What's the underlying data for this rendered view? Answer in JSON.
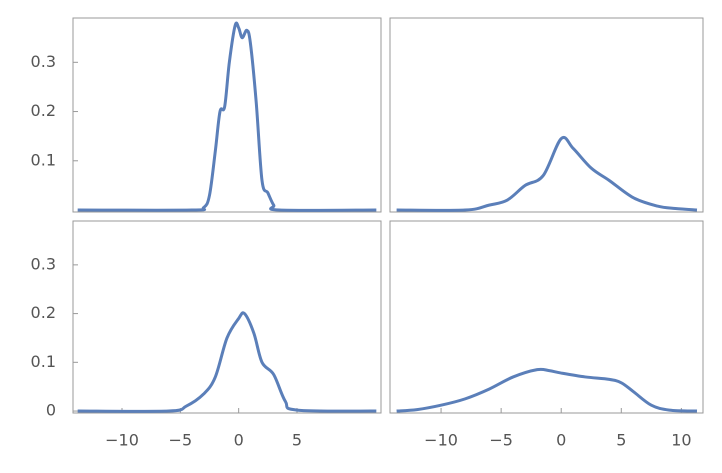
{
  "chart_data": [
    {
      "type": "line",
      "color": "#5b7fb9",
      "x": [
        -13.8,
        -4,
        -3,
        -2.5,
        -2,
        -1.6,
        -1.2,
        -0.8,
        -0.3,
        0,
        0.3,
        0.7,
        1,
        1.5,
        2,
        2.5,
        3,
        3.5,
        11.8
      ],
      "values": [
        0,
        0,
        0.005,
        0.03,
        0.12,
        0.2,
        0.21,
        0.3,
        0.375,
        0.37,
        0.35,
        0.365,
        0.34,
        0.22,
        0.06,
        0.035,
        0.01,
        0,
        0
      ],
      "xlim": [
        -14.2,
        12.2
      ],
      "ylim": [
        -0.004,
        0.39
      ],
      "yticks": [
        0.1,
        0.2,
        0.3
      ]
    },
    {
      "type": "line",
      "color": "#5b7fb9",
      "x": [
        -13.7,
        -8,
        -6,
        -4.5,
        -3,
        -1.5,
        0,
        1,
        2.5,
        4,
        6,
        8,
        9.5,
        11.3
      ],
      "values": [
        0,
        0,
        0.01,
        0.02,
        0.05,
        0.07,
        0.145,
        0.125,
        0.085,
        0.06,
        0.025,
        0.008,
        0.003,
        0
      ],
      "xlim": [
        -14.25,
        11.8
      ],
      "ylim": [
        -0.004,
        0.39
      ]
    },
    {
      "type": "line",
      "color": "#5b7fb9",
      "x": [
        -13.8,
        -6,
        -4.5,
        -3,
        -2,
        -1,
        0,
        0.5,
        1.3,
        2,
        3,
        4,
        5,
        11.8
      ],
      "values": [
        0,
        0,
        0.01,
        0.035,
        0.07,
        0.15,
        0.19,
        0.2,
        0.16,
        0.1,
        0.075,
        0.02,
        0.002,
        0
      ],
      "xlim": [
        -14.2,
        12.2
      ],
      "ylim": [
        -0.004,
        0.39
      ],
      "yticks": [
        0,
        0.1,
        0.2,
        0.3
      ],
      "xticks": [
        {
          "value": -10,
          "label": "−10"
        },
        {
          "value": -5,
          "label": "−5"
        },
        0,
        5
      ]
    },
    {
      "type": "line",
      "color": "#5b7fb9",
      "x": [
        -13.7,
        -12,
        -10,
        -8,
        -6,
        -4,
        -2,
        -1,
        0,
        2,
        4,
        5,
        6,
        7.5,
        9,
        11.3
      ],
      "values": [
        0,
        0.003,
        0.012,
        0.025,
        0.045,
        0.07,
        0.085,
        0.083,
        0.078,
        0.07,
        0.065,
        0.058,
        0.04,
        0.012,
        0.002,
        0
      ],
      "xlim": [
        -14.25,
        11.8
      ],
      "ylim": [
        -0.004,
        0.39
      ],
      "xticks": [
        {
          "value": -10,
          "label": "−10"
        },
        {
          "value": -5,
          "label": "−5"
        },
        0,
        5,
        10
      ]
    }
  ]
}
